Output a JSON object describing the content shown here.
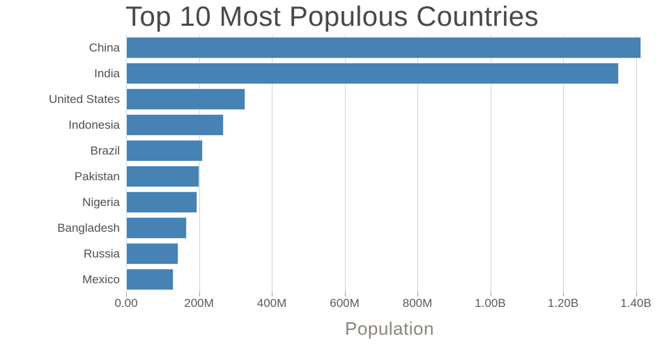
{
  "chart_data": {
    "type": "bar",
    "orientation": "horizontal",
    "title": "Top 10 Most Populous Countries",
    "xlabel": "Population",
    "ylabel": "",
    "categories": [
      "China",
      "India",
      "United States",
      "Indonesia",
      "Brazil",
      "Pakistan",
      "Nigeria",
      "Bangladesh",
      "Russia",
      "Mexico"
    ],
    "values_millions": [
      1415,
      1354,
      327,
      267,
      211,
      201,
      196,
      166,
      144,
      131
    ],
    "xlim_millions": [
      0,
      1450
    ],
    "x_tick_values_millions": [
      0,
      200,
      400,
      600,
      800,
      1000,
      1200,
      1400
    ],
    "x_tick_labels": [
      "0.00",
      "200M",
      "400M",
      "600M",
      "800M",
      "1.00B",
      "1.20B",
      "1.40B"
    ],
    "grid": "vertical-major-only",
    "legend": "none"
  },
  "colors": {
    "bar_fill": "#4682B4",
    "bar_edge": "#d9e6f1",
    "gridline": "#d2d2d2",
    "tick_mark": "#9a9a9a",
    "title_text": "#484848",
    "category_label": "#4f4f4f",
    "tick_label": "#5a5a5a",
    "axis_label": "#8b857e",
    "background": "#ffffff"
  }
}
